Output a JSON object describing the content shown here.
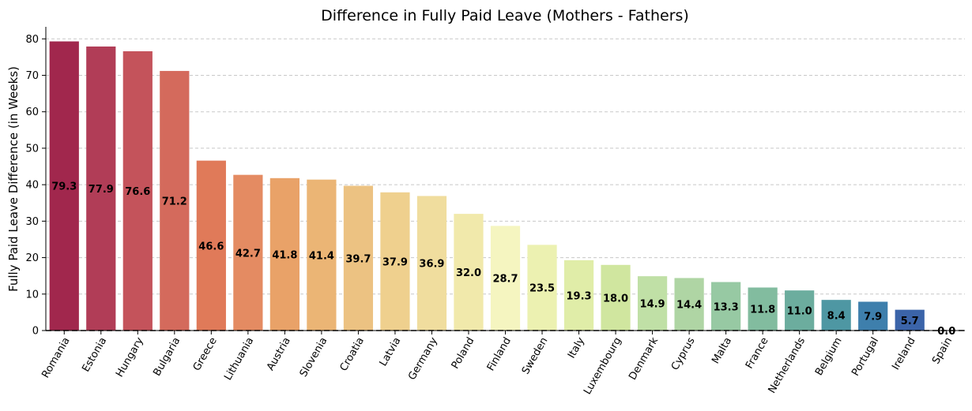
{
  "chart_data": {
    "type": "bar",
    "title": "Difference in Fully Paid Leave (Mothers - Fathers)",
    "xlabel": "",
    "ylabel": "Fully Paid Leave Difference (in Weeks)",
    "ylim": [
      0,
      83.3
    ],
    "yticks": [
      0,
      10,
      20,
      30,
      40,
      50,
      60,
      70,
      80
    ],
    "grid": "y-dashed",
    "reference_line": 0,
    "categories": [
      "Romania",
      "Estonia",
      "Hungary",
      "Bulgaria",
      "Greece",
      "Lithuania",
      "Austria",
      "Slovenia",
      "Croatia",
      "Latvia",
      "Germany",
      "Poland",
      "Finland",
      "Sweden",
      "Italy",
      "Luxembourg",
      "Denmark",
      "Cyprus",
      "Malta",
      "France",
      "Netherlands",
      "Belgium",
      "Portugal",
      "Ireland",
      "Spain"
    ],
    "values": [
      79.3,
      77.9,
      76.6,
      71.2,
      46.6,
      42.7,
      41.8,
      41.4,
      39.7,
      37.9,
      36.9,
      32.0,
      28.7,
      23.5,
      19.3,
      18.0,
      14.9,
      14.4,
      13.3,
      11.8,
      11.0,
      8.4,
      7.9,
      5.7,
      0.0
    ],
    "value_labels": [
      "79.3",
      "77.9",
      "76.6",
      "71.2",
      "46.6",
      "42.7",
      "41.8",
      "41.4",
      "39.7",
      "37.9",
      "36.9",
      "32.0",
      "28.7",
      "23.5",
      "19.3",
      "18.0",
      "14.9",
      "14.4",
      "13.3",
      "11.8",
      "11.0",
      "8.4",
      "7.9",
      "5.7",
      "0.0"
    ],
    "colors": [
      "#a1274d",
      "#b13d57",
      "#c4535b",
      "#d46a5c",
      "#e07a59",
      "#e48b62",
      "#e9a268",
      "#ebb575",
      "#ecc282",
      "#efd08e",
      "#f0dd9e",
      "#f1e9ab",
      "#f5f5c0",
      "#ecf1b1",
      "#e0eda8",
      "#d0e69f",
      "#c0e0a6",
      "#afd5a4",
      "#97c9a3",
      "#82bc9f",
      "#6cad9e",
      "#4e97a3",
      "#3e7fac",
      "#3b64a9",
      "#5a50a3"
    ]
  }
}
